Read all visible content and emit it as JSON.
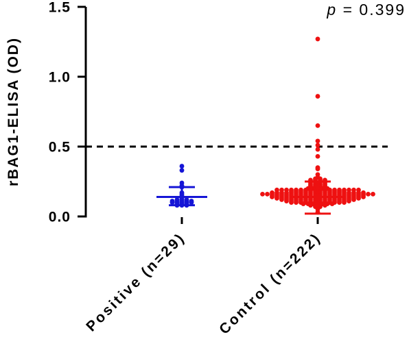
{
  "chart_data": {
    "type": "scatter",
    "title": "",
    "ylabel": "rBAG1-ELISA (OD)",
    "xlabel": "",
    "ylim": [
      0,
      1.5
    ],
    "yticks": [
      "0.0",
      "0.5",
      "1.0",
      "1.5"
    ],
    "ytick_values": [
      0.0,
      0.5,
      1.0,
      1.5
    ],
    "categories": [
      "Positive (n=29)",
      "Control (n=222)"
    ],
    "cutoff": 0.5,
    "grid": false,
    "annotation": {
      "prefix": "p",
      "text": " = 0.399"
    },
    "colors": {
      "Positive (n=29)": "#1515d6",
      "Control (n=222)": "#ee1111",
      "axis": "#000000",
      "cutoff_line": "#000000"
    },
    "series": [
      {
        "category": "Positive (n=29)",
        "summary": {
          "mean": 0.14,
          "sd_upper": 0.21,
          "sd_lower": 0.08
        },
        "values": [
          0.36,
          0.33,
          0.24,
          0.22,
          0.21,
          0.17,
          0.16,
          0.15,
          0.14,
          0.13,
          0.12,
          0.12,
          0.12,
          0.11,
          0.11,
          0.11,
          0.11,
          0.11,
          0.1,
          0.1,
          0.1,
          0.1,
          0.1,
          0.09,
          0.09,
          0.09,
          0.08,
          0.08,
          0.08
        ]
      },
      {
        "category": "Control (n=222)",
        "summary": {
          "mean": 0.14,
          "sd_upper": 0.25,
          "sd_lower": 0.02
        },
        "values": [
          1.27,
          0.86,
          0.65,
          0.54,
          0.51,
          0.48,
          0.43,
          0.35,
          0.34,
          0.3,
          0.28,
          0.27,
          0.27,
          0.26,
          0.26,
          0.26,
          0.26,
          0.25,
          0.25,
          0.25,
          0.25,
          0.24,
          0.24,
          0.24,
          0.24,
          0.23,
          0.23,
          0.23,
          0.23,
          0.22,
          0.22,
          0.22,
          0.22,
          0.21,
          0.21,
          0.21,
          0.21,
          0.2,
          0.2,
          0.2,
          0.2,
          0.2,
          0.19,
          0.19,
          0.19,
          0.19,
          0.19,
          0.19,
          0.19,
          0.19,
          0.19,
          0.19,
          0.19,
          0.19,
          0.19,
          0.19,
          0.19,
          0.19,
          0.19,
          0.19,
          0.18,
          0.18,
          0.18,
          0.18,
          0.18,
          0.18,
          0.18,
          0.18,
          0.18,
          0.18,
          0.18,
          0.18,
          0.17,
          0.17,
          0.17,
          0.17,
          0.17,
          0.17,
          0.17,
          0.17,
          0.17,
          0.17,
          0.17,
          0.17,
          0.17,
          0.17,
          0.17,
          0.17,
          0.17,
          0.17,
          0.17,
          0.17,
          0.16,
          0.16,
          0.16,
          0.16,
          0.16,
          0.16,
          0.16,
          0.16,
          0.16,
          0.16,
          0.16,
          0.16,
          0.16,
          0.16,
          0.16,
          0.16,
          0.16,
          0.16,
          0.16,
          0.16,
          0.16,
          0.16,
          0.16,
          0.16,
          0.15,
          0.15,
          0.15,
          0.15,
          0.15,
          0.15,
          0.15,
          0.15,
          0.15,
          0.15,
          0.15,
          0.15,
          0.15,
          0.15,
          0.15,
          0.15,
          0.15,
          0.15,
          0.15,
          0.15,
          0.14,
          0.14,
          0.14,
          0.14,
          0.14,
          0.14,
          0.14,
          0.14,
          0.14,
          0.14,
          0.14,
          0.14,
          0.14,
          0.14,
          0.14,
          0.14,
          0.14,
          0.14,
          0.14,
          0.14,
          0.13,
          0.13,
          0.13,
          0.13,
          0.13,
          0.13,
          0.13,
          0.13,
          0.13,
          0.13,
          0.13,
          0.13,
          0.13,
          0.13,
          0.13,
          0.13,
          0.13,
          0.13,
          0.12,
          0.12,
          0.12,
          0.12,
          0.12,
          0.12,
          0.12,
          0.12,
          0.12,
          0.12,
          0.12,
          0.12,
          0.12,
          0.12,
          0.12,
          0.12,
          0.11,
          0.11,
          0.11,
          0.11,
          0.11,
          0.11,
          0.11,
          0.11,
          0.11,
          0.11,
          0.11,
          0.11,
          0.11,
          0.11,
          0.1,
          0.1,
          0.1,
          0.1,
          0.1,
          0.1,
          0.1,
          0.1,
          0.1,
          0.1,
          0.1,
          0.1,
          0.09,
          0.09,
          0.09,
          0.09,
          0.09,
          0.09,
          0.09,
          0.08,
          0.08,
          0.08,
          0.08,
          0.07,
          0.07,
          0.06,
          0.05,
          0.03
        ]
      }
    ]
  }
}
